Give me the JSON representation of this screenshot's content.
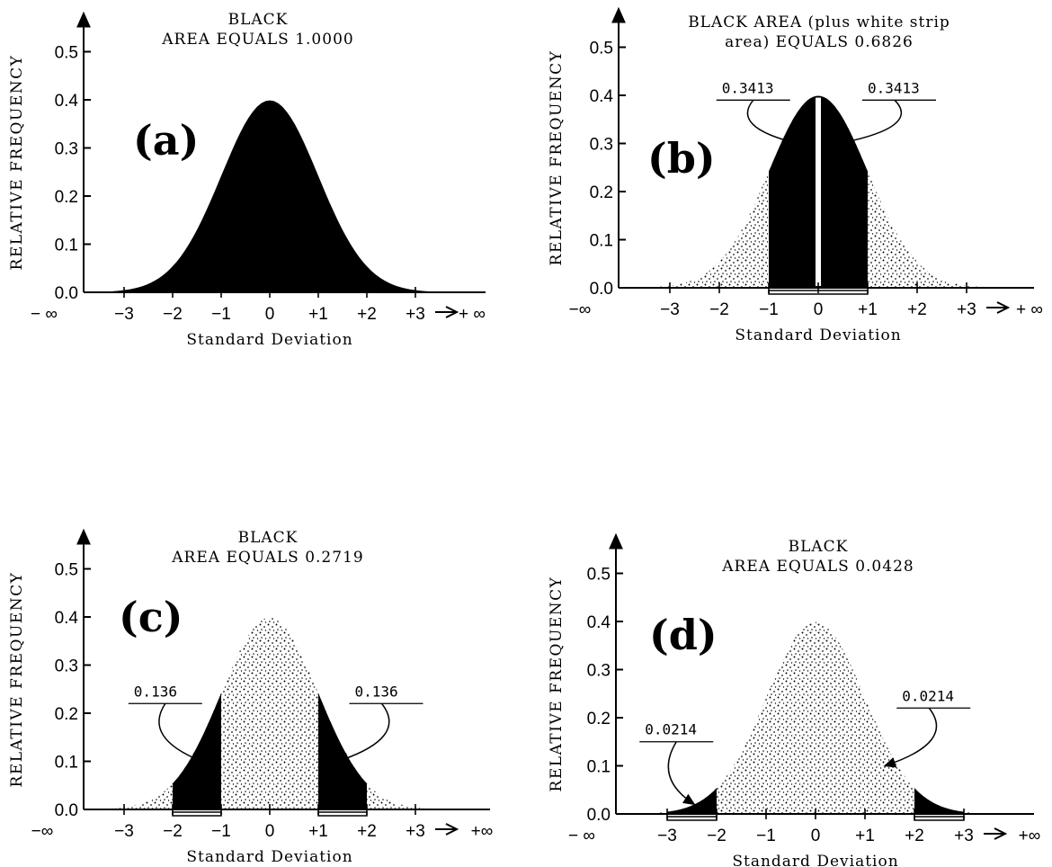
{
  "chart_data": [
    {
      "type": "area",
      "panel_label": "(a)",
      "title_lines": [
        "BLACK",
        "AREA EQUALS 1.0000"
      ],
      "xlabel": "Standard Deviation",
      "ylabel": "RELATIVE FREQUENCY",
      "x_ticks": [
        "-3",
        "-2",
        "-1",
        "0",
        "+1",
        "+2",
        "+3"
      ],
      "x_ends": [
        "− ∞",
        "+ ∞"
      ],
      "y_ticks": [
        "0.0",
        "0.1",
        "0.2",
        "0.3",
        "0.4",
        "0.5"
      ],
      "ylim": [
        0,
        0.5
      ],
      "xlim": [
        -3.5,
        3.5
      ],
      "curve": "standard normal density",
      "black_regions": [
        [
          -3.5,
          3.5
        ]
      ],
      "white_strip": false,
      "annotations": []
    },
    {
      "type": "area",
      "panel_label": "(b)",
      "title_lines": [
        "BLACK AREA (plus white strip",
        "area) EQUALS 0.6826"
      ],
      "xlabel": "Standard Deviation",
      "ylabel": "RELATIVE FREQUENCY",
      "x_ticks": [
        "-3",
        "-2",
        "-1",
        "0",
        "+1",
        "+2",
        "+3"
      ],
      "x_ends": [
        "−∞",
        "+ ∞"
      ],
      "y_ticks": [
        "0.0",
        "0.1",
        "0.2",
        "0.3",
        "0.4",
        "0.5"
      ],
      "ylim": [
        0,
        0.5
      ],
      "xlim": [
        -3.5,
        3.5
      ],
      "curve": "standard normal density",
      "black_regions": [
        [
          -1,
          1
        ]
      ],
      "white_strip": true,
      "annotations": [
        {
          "text": "0.3413",
          "side": "left"
        },
        {
          "text": "0.3413",
          "side": "right"
        }
      ]
    },
    {
      "type": "area",
      "panel_label": "(c)",
      "title_lines": [
        "BLACK",
        "AREA EQUALS 0.2719"
      ],
      "xlabel": "Standard Deviation",
      "ylabel": "RELATIVE FREQUENCY",
      "x_ticks": [
        "-3",
        "-2",
        "-1",
        "0",
        "+1",
        "+2",
        "+3"
      ],
      "x_ends": [
        "−∞",
        "+∞"
      ],
      "y_ticks": [
        "0.0",
        "0.1",
        "0.2",
        "0.3",
        "0.4",
        "0.5"
      ],
      "ylim": [
        0,
        0.5
      ],
      "xlim": [
        -3.5,
        3.5
      ],
      "curve": "standard normal density",
      "black_regions": [
        [
          -2,
          -1
        ],
        [
          1,
          2
        ]
      ],
      "white_strip": false,
      "annotations": [
        {
          "text": "0.136",
          "side": "left"
        },
        {
          "text": "0.136",
          "side": "right"
        }
      ]
    },
    {
      "type": "area",
      "panel_label": "(d)",
      "title_lines": [
        "BLACK",
        "AREA EQUALS 0.0428"
      ],
      "xlabel": "Standard Deviation",
      "ylabel": "RELATIVE FREQUENCY",
      "x_ticks": [
        "-3",
        "-2",
        "-1",
        "0",
        "+1",
        "+2",
        "+3"
      ],
      "x_ends": [
        "− ∞",
        "+∞"
      ],
      "y_ticks": [
        "0.0",
        "0.1",
        "0.2",
        "0.3",
        "0.4",
        "0.5"
      ],
      "ylim": [
        0,
        0.5
      ],
      "xlim": [
        -3.5,
        3.5
      ],
      "curve": "standard normal density",
      "black_regions": [
        [
          -3,
          -2
        ],
        [
          2,
          3
        ]
      ],
      "white_strip": false,
      "annotations": [
        {
          "text": "0.0214",
          "side": "left"
        },
        {
          "text": "0.0214",
          "side": "right"
        }
      ]
    }
  ]
}
